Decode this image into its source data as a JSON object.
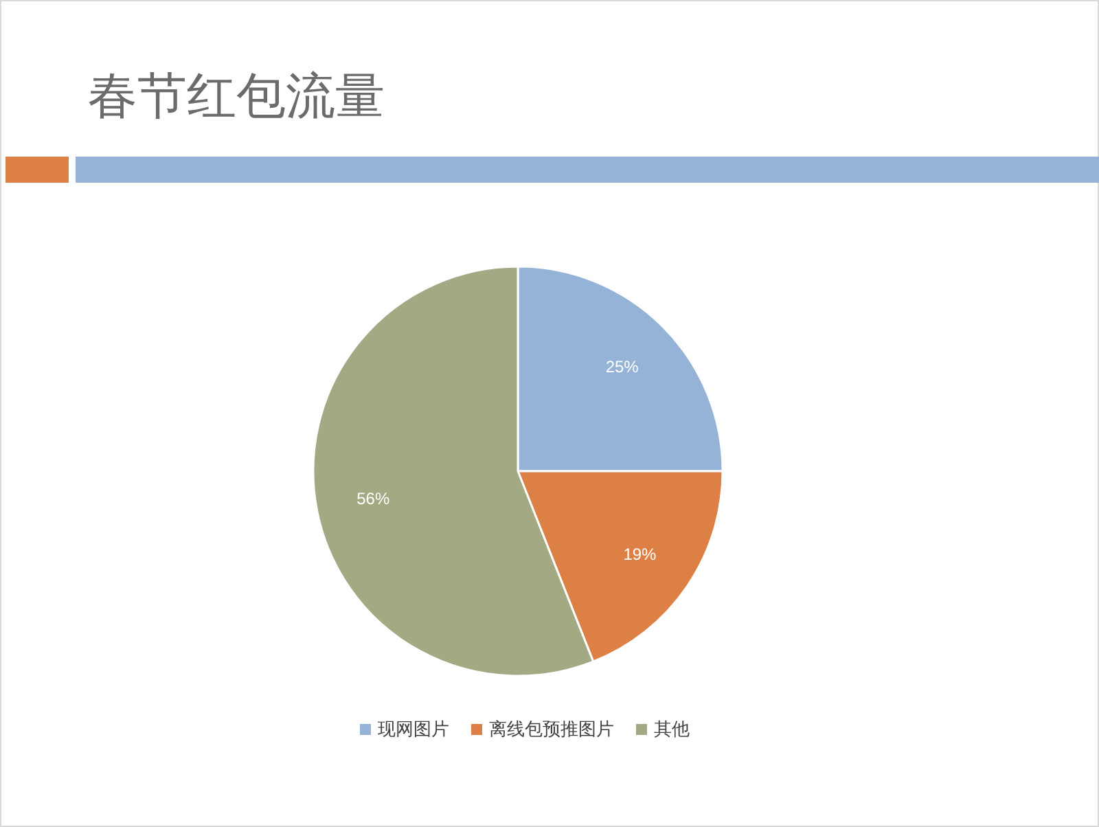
{
  "chart_data": {
    "type": "pie",
    "title": "春节红包流量",
    "categories": [
      "现网图片",
      "离线包预推图片",
      "其他"
    ],
    "values": [
      25,
      19,
      56
    ],
    "colors": [
      "#94b3d6",
      "#dd8046",
      "#a3a983"
    ],
    "value_labels": [
      "25%",
      "19%",
      "56%"
    ],
    "legend": "bottom"
  }
}
